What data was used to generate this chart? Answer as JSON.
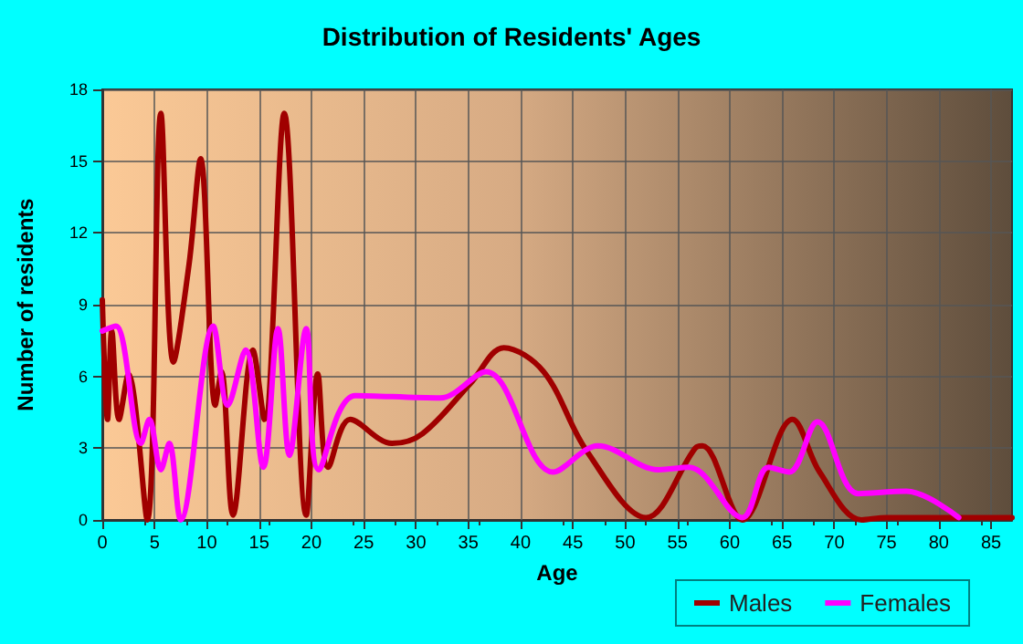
{
  "chart_data": {
    "type": "line",
    "title": "Distribution of Residents' Ages",
    "xlabel": "Age",
    "ylabel": "Number of residents",
    "series": [
      {
        "name": "Males",
        "color": "#a00000",
        "x": [
          0,
          0.5,
          0.9,
          1.6,
          2.5,
          4.3,
          5.6,
          6.8,
          8.3,
          9.4,
          10.8,
          11.4,
          12.5,
          14.4,
          15.5,
          17.4,
          19.5,
          20.6,
          21.6,
          23.7,
          27.7,
          30.6,
          35.2,
          38.4,
          42.2,
          46.3,
          52,
          56.7,
          57.4,
          61.2,
          66,
          68.6,
          72.6,
          75,
          87
        ],
        "values": [
          9.2,
          4.2,
          7.9,
          4.2,
          6.1,
          0,
          17,
          6.6,
          10.7,
          15.1,
          4.8,
          6.2,
          0.2,
          7.1,
          4.2,
          17,
          0.2,
          6.1,
          2.2,
          4.2,
          3.2,
          3.6,
          5.7,
          7.2,
          6.2,
          2.9,
          0.1,
          3,
          3.1,
          0,
          4.2,
          2,
          0,
          0.1,
          0.1
        ]
      },
      {
        "name": "Females",
        "color": "#ff00ff",
        "x": [
          0,
          1.3,
          3.7,
          4.5,
          5.6,
          6.4,
          7.5,
          10.6,
          12,
          13.7,
          15.4,
          16.8,
          17.9,
          19.5,
          20.7,
          24.2,
          32.3,
          36.7,
          43.1,
          47.4,
          53.2,
          56.1,
          61.2,
          63.7,
          65.7,
          68.4,
          72.3,
          76.9,
          81.9
        ],
        "values": [
          7.9,
          8.1,
          3.2,
          4.2,
          2.1,
          3.2,
          0,
          8.1,
          4.8,
          7.1,
          2.2,
          8,
          2.7,
          8,
          2.1,
          5.2,
          5.1,
          6.2,
          2,
          3.1,
          2.1,
          2.2,
          0.1,
          2.2,
          2,
          4.1,
          1.1,
          1.2,
          0.1
        ]
      }
    ],
    "xlim": [
      0,
      87
    ],
    "xticks": [
      0,
      5,
      10,
      15,
      20,
      25,
      30,
      35,
      40,
      45,
      50,
      55,
      60,
      65,
      70,
      75,
      80,
      85
    ],
    "ylim": [
      0,
      18
    ],
    "yticks": [
      0,
      3,
      6,
      9,
      12,
      15,
      18
    ],
    "grid": true,
    "legend": "bottom",
    "marker": "none",
    "line_style": "solid"
  }
}
